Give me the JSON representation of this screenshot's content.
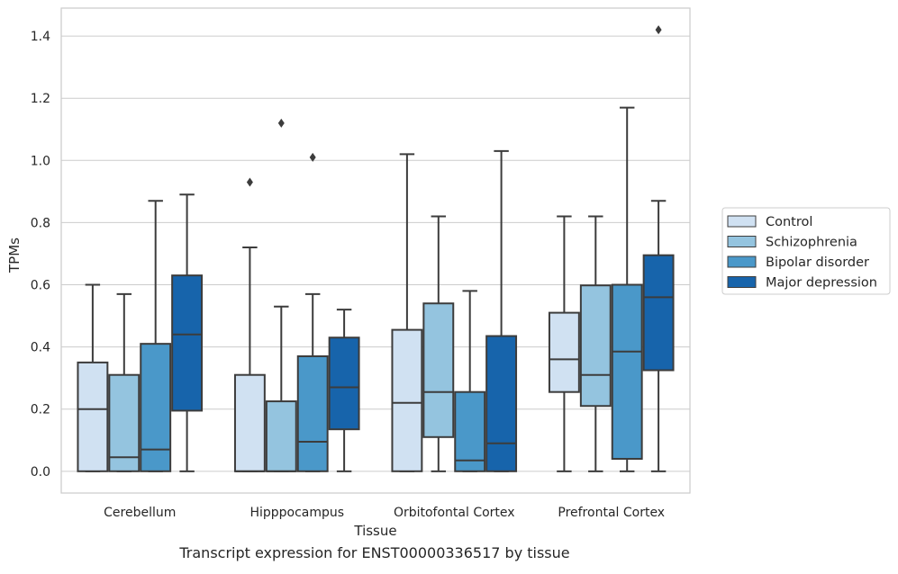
{
  "caption": "Transcript expression for ENST00000336517 by tissue",
  "chart_data": {
    "type": "box",
    "xlabel": "Tissue",
    "ylabel": "TPMs",
    "ylim": [
      -0.07,
      1.49
    ],
    "yticks": [
      0.0,
      0.2,
      0.4,
      0.6,
      0.8,
      1.0,
      1.2,
      1.4
    ],
    "ytick_labels": [
      "0.0",
      "0.2",
      "0.4",
      "0.6",
      "0.8",
      "1.0",
      "1.2",
      "1.4"
    ],
    "grid": "horizontal",
    "legend_position": "right-outside",
    "categories": [
      "Cerebellum",
      "Hipppocampus",
      "Orbitofontal Cortex",
      "Prefrontal Cortex"
    ],
    "series": [
      {
        "name": "Control",
        "color": "#d0e1f2",
        "boxes": [
          {
            "min": 0.0,
            "q1": 0.0,
            "median": 0.2,
            "q3": 0.35,
            "max": 0.6,
            "outliers": []
          },
          {
            "min": 0.0,
            "q1": 0.0,
            "median": 0.0,
            "q3": 0.31,
            "max": 0.72,
            "outliers": [
              0.93
            ]
          },
          {
            "min": 0.0,
            "q1": 0.0,
            "median": 0.22,
            "q3": 0.455,
            "max": 1.02,
            "outliers": []
          },
          {
            "min": 0.0,
            "q1": 0.255,
            "median": 0.36,
            "q3": 0.51,
            "max": 0.82,
            "outliers": []
          }
        ]
      },
      {
        "name": "Schizophrenia",
        "color": "#94c4df",
        "boxes": [
          {
            "min": 0.0,
            "q1": 0.0,
            "median": 0.045,
            "q3": 0.31,
            "max": 0.57,
            "outliers": []
          },
          {
            "min": 0.0,
            "q1": 0.0,
            "median": 0.0,
            "q3": 0.225,
            "max": 0.53,
            "outliers": [
              1.12
            ]
          },
          {
            "min": 0.0,
            "q1": 0.11,
            "median": 0.255,
            "q3": 0.54,
            "max": 0.82,
            "outliers": []
          },
          {
            "min": 0.0,
            "q1": 0.21,
            "median": 0.31,
            "q3": 0.598,
            "max": 0.82,
            "outliers": []
          }
        ]
      },
      {
        "name": "Bipolar disorder",
        "color": "#4a98c9",
        "boxes": [
          {
            "min": 0.0,
            "q1": 0.0,
            "median": 0.07,
            "q3": 0.41,
            "max": 0.87,
            "outliers": []
          },
          {
            "min": 0.0,
            "q1": 0.0,
            "median": 0.095,
            "q3": 0.37,
            "max": 0.57,
            "outliers": [
              1.01
            ]
          },
          {
            "min": 0.0,
            "q1": 0.0,
            "median": 0.035,
            "q3": 0.255,
            "max": 0.58,
            "outliers": []
          },
          {
            "min": 0.0,
            "q1": 0.04,
            "median": 0.385,
            "q3": 0.6,
            "max": 1.17,
            "outliers": []
          }
        ]
      },
      {
        "name": "Major depression",
        "color": "#1764ab",
        "boxes": [
          {
            "min": 0.0,
            "q1": 0.195,
            "median": 0.44,
            "q3": 0.63,
            "max": 0.89,
            "outliers": []
          },
          {
            "min": 0.0,
            "q1": 0.135,
            "median": 0.27,
            "q3": 0.43,
            "max": 0.52,
            "outliers": []
          },
          {
            "min": 0.0,
            "q1": 0.0,
            "median": 0.09,
            "q3": 0.435,
            "max": 1.03,
            "outliers": []
          },
          {
            "min": 0.0,
            "q1": 0.325,
            "median": 0.56,
            "q3": 0.695,
            "max": 0.87,
            "outliers": [
              1.42
            ]
          }
        ]
      }
    ]
  }
}
